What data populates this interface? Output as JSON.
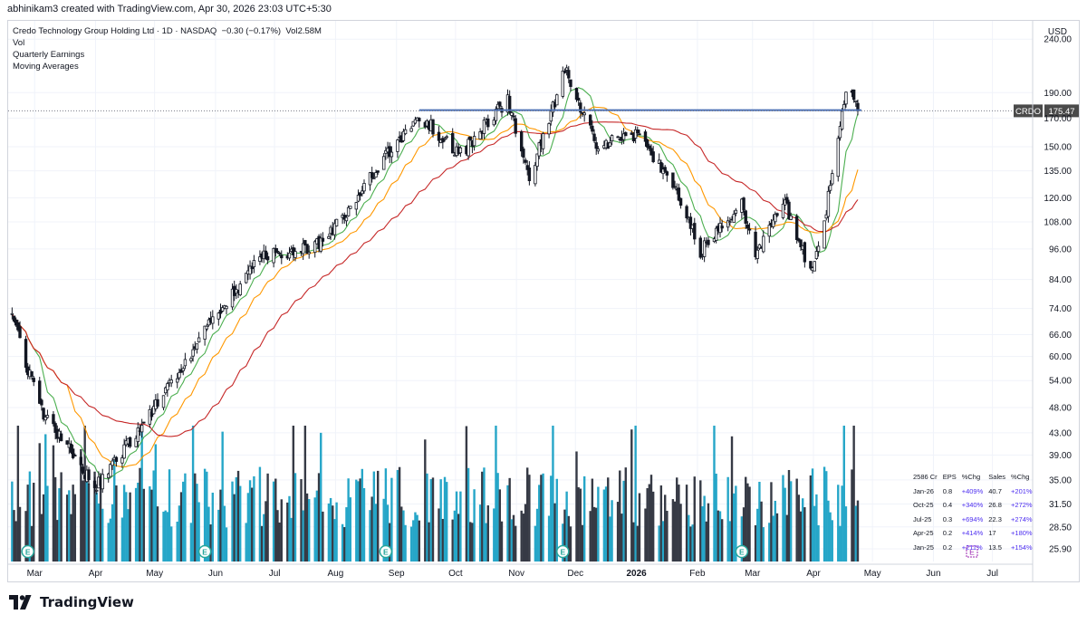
{
  "header": {
    "text": "abhinikam3 created with TradingView.com, Apr 30, 2026 23:03 UTC+5:30"
  },
  "legend": {
    "title": "Credo Technology Group Holding Ltd · 1D · NASDAQ",
    "change": "−0.30 (−0.17%)",
    "volume": "Vol2.58M",
    "line2": "Vol",
    "line3": "Quarterly Earnings",
    "line4": "Moving Averages"
  },
  "brand": {
    "name": "TradingView"
  },
  "chart_data": {
    "type": "candlestick",
    "symbol": "CRDO",
    "currency": "USD",
    "last_price": "175.47",
    "last_price_label": "CRDO",
    "y_scale": "log",
    "ylim": [
      24.5,
      260
    ],
    "y_ticks": [
      "240.00",
      "190.00",
      "170.00",
      "150.00",
      "135.00",
      "120.00",
      "108.00",
      "96.00",
      "84.00",
      "74.00",
      "66.00",
      "60.00",
      "54.00",
      "48.00",
      "43.00",
      "39.00",
      "35.00",
      "31.50",
      "28.50",
      "25.90"
    ],
    "x_labels": [
      "Mar",
      "Apr",
      "May",
      "Jun",
      "Jul",
      "Aug",
      "Sep",
      "Oct",
      "Nov",
      "Dec",
      "2026",
      "Feb",
      "Mar",
      "Apr",
      "May",
      "Jun",
      "Jul"
    ],
    "key_points": [
      {
        "date": "2025-02-24",
        "close": 72
      },
      {
        "date": "2025-03-10",
        "close": 48
      },
      {
        "date": "2025-04-07",
        "close": 34
      },
      {
        "date": "2025-05-01",
        "close": 44
      },
      {
        "date": "2025-06-02",
        "close": 67
      },
      {
        "date": "2025-07-01",
        "close": 93
      },
      {
        "date": "2025-08-01",
        "close": 98
      },
      {
        "date": "2025-09-02",
        "close": 145
      },
      {
        "date": "2025-09-19",
        "close": 172
      },
      {
        "date": "2025-10-10",
        "close": 145
      },
      {
        "date": "2025-11-03",
        "close": 185
      },
      {
        "date": "2025-11-14",
        "close": 130
      },
      {
        "date": "2025-12-02",
        "close": 210
      },
      {
        "date": "2025-12-19",
        "close": 150
      },
      {
        "date": "2026-01-09",
        "close": 160
      },
      {
        "date": "2026-01-30",
        "close": 118
      },
      {
        "date": "2026-02-09",
        "close": 95
      },
      {
        "date": "2026-03-02",
        "close": 118
      },
      {
        "date": "2026-03-09",
        "close": 93
      },
      {
        "date": "2026-03-23",
        "close": 120
      },
      {
        "date": "2026-04-06",
        "close": 86
      },
      {
        "date": "2026-04-13",
        "close": 108
      },
      {
        "date": "2026-04-24",
        "close": 196
      },
      {
        "date": "2026-04-30",
        "close": 175.47
      }
    ],
    "resistance_line": {
      "value": 176,
      "from": "2025-09-19",
      "to": "2026-04-30",
      "color": "#4a6fb5"
    },
    "moving_averages": [
      {
        "color": "#4caf50"
      },
      {
        "color": "#ff9800"
      },
      {
        "color": "#c62828"
      }
    ],
    "volume_colors": {
      "up": "#26a6c8",
      "down": "#363a45"
    },
    "earnings_markers": [
      "2025-03-04",
      "2025-06-02",
      "2025-09-02",
      "2025-12-01",
      "2026-03-02"
    ],
    "earnings_table": {
      "headers": [
        "2586 Cr",
        "EPS",
        "%Chg",
        "Sales",
        "%Chg"
      ],
      "rows": [
        [
          "Jan-26",
          "0.8",
          "+409%",
          "40.7",
          "+201%"
        ],
        [
          "Oct-25",
          "0.4",
          "+340%",
          "26.8",
          "+272%"
        ],
        [
          "Jul-25",
          "0.3",
          "+694%",
          "22.3",
          "+274%"
        ],
        [
          "Apr-25",
          "0.2",
          "+414%",
          "17",
          "+180%"
        ],
        [
          "Jan-25",
          "0.2",
          "+211%",
          "13.5",
          "+154%"
        ]
      ]
    }
  }
}
